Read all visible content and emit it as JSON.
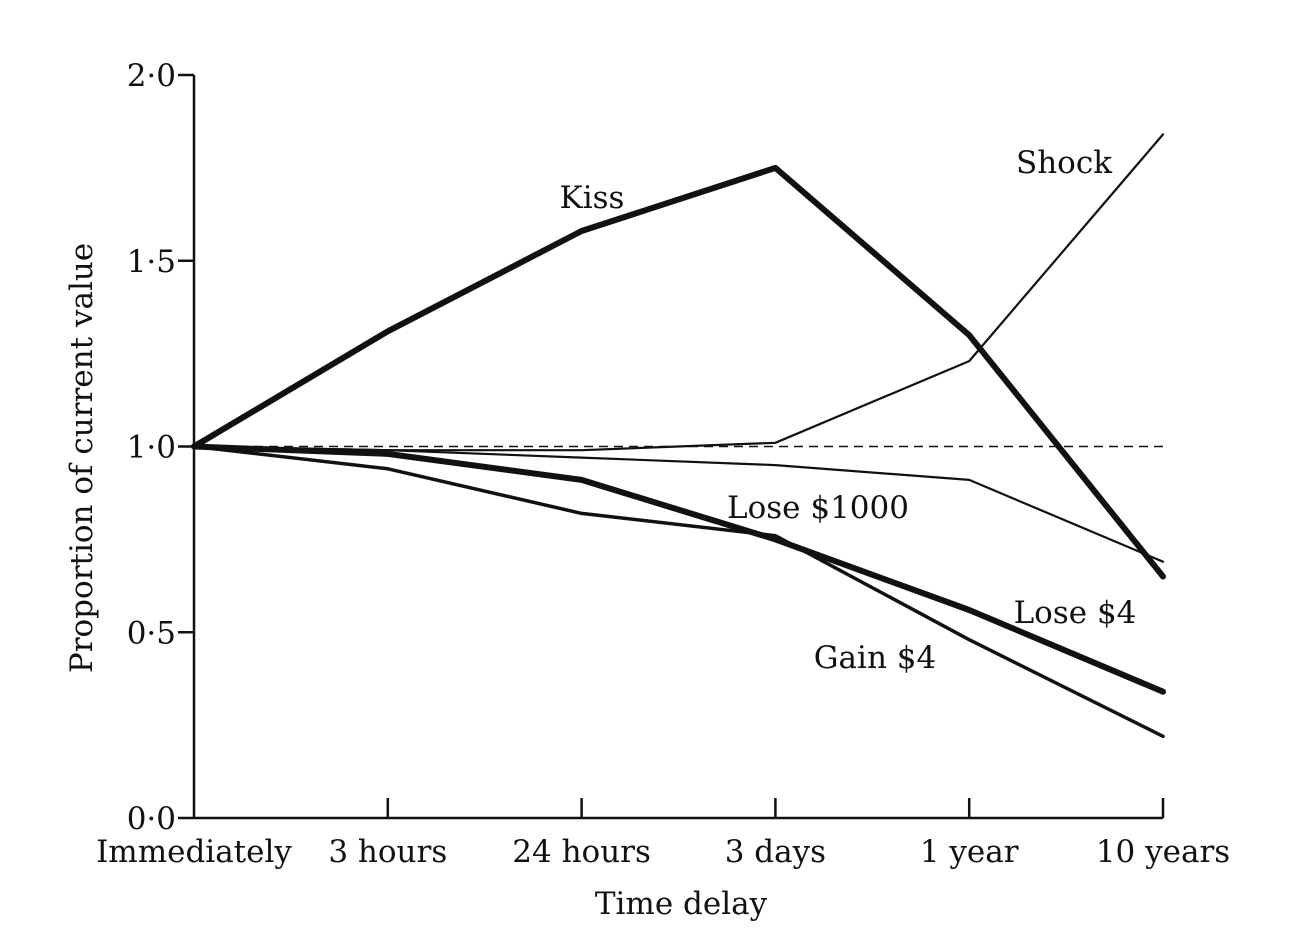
{
  "chart_data": {
    "type": "line",
    "title": "",
    "xlabel": "Time delay",
    "ylabel": "Proportion of current value",
    "categories": [
      "Immediately",
      "3 hours",
      "24 hours",
      "3 days",
      "1 year",
      "10 years"
    ],
    "ylim": [
      0.0,
      2.0
    ],
    "yticks": [
      {
        "value": 0.0,
        "label": "0·0"
      },
      {
        "value": 0.5,
        "label": "0·5"
      },
      {
        "value": 1.0,
        "label": "1·0"
      },
      {
        "value": 1.5,
        "label": "1·5"
      },
      {
        "value": 2.0,
        "label": "2·0"
      }
    ],
    "reference_line": {
      "value": 1.0,
      "style": "dashed"
    },
    "grid": false,
    "legend": "none (series labelled directly on the lines)",
    "series": [
      {
        "name": "Kiss",
        "values": [
          1.0,
          1.31,
          1.58,
          1.75,
          1.3,
          0.65
        ],
        "weight": "heavy"
      },
      {
        "name": "Shock",
        "values": [
          1.0,
          0.99,
          0.99,
          1.01,
          1.23,
          1.84
        ],
        "weight": "light"
      },
      {
        "name": "Lose $1000",
        "values": [
          1.0,
          0.99,
          0.97,
          0.95,
          0.91,
          0.69
        ],
        "weight": "light"
      },
      {
        "name": "Lose $4",
        "values": [
          1.0,
          0.98,
          0.91,
          0.75,
          0.56,
          0.34
        ],
        "weight": "heavy"
      },
      {
        "name": "Gain $4",
        "values": [
          1.0,
          0.94,
          0.82,
          0.76,
          0.48,
          0.22
        ],
        "weight": "medium"
      }
    ],
    "line_color": "#111111"
  }
}
